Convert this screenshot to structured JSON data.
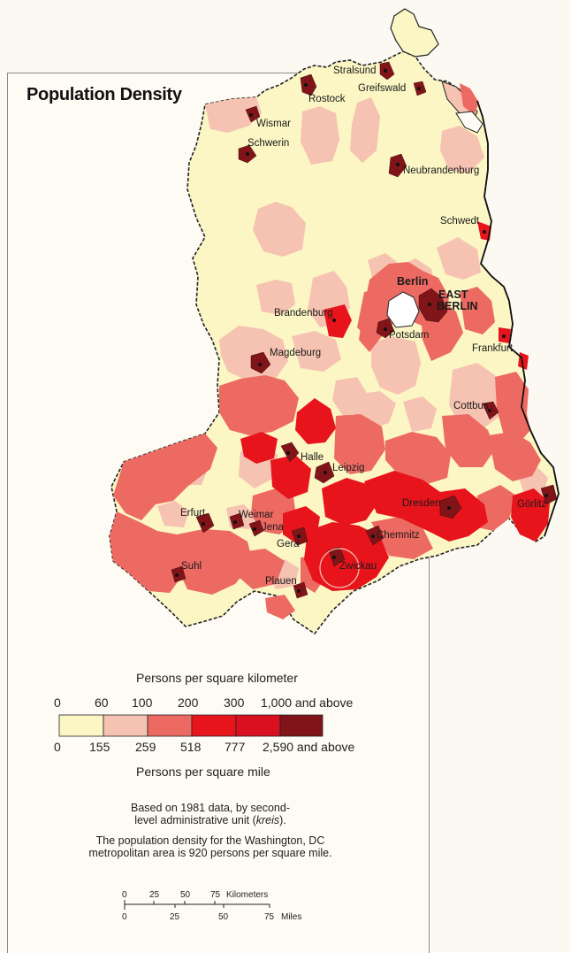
{
  "title": "Population Density",
  "cities": {
    "stralsund": "Stralsund",
    "greifswald": "Greifswald",
    "rostock": "Rostock",
    "wismar": "Wismar",
    "schwerin": "Schwerin",
    "neubrandenburg": "Neubrandenburg",
    "schwedt": "Schwedt",
    "berlin": "Berlin",
    "east_berlin_1": "EAST",
    "east_berlin_2": "BERLIN",
    "brandenburg": "Brandenburg",
    "potsdam": "Potsdam",
    "frankfurt": "Frankfurt",
    "magdeburg": "Magdeburg",
    "cottbus": "Cottbus",
    "halle": "Halle",
    "leipzig": "Leipzig",
    "dresden": "Dresden",
    "gorlitz": "Görlitz",
    "erfurt": "Erfurt",
    "weimar": "Weimar",
    "jena": "Jena",
    "gera": "Gera",
    "chemnitz": "Chemnitz",
    "zwickau": "Zwickau",
    "suhl": "Suhl",
    "plauen": "Plauen"
  },
  "legend": {
    "km_title": "Persons per square kilometer",
    "mile_title": "Persons per square mile",
    "km_ticks": [
      "0",
      "60",
      "100",
      "200",
      "300",
      "1,000 and above"
    ],
    "mile_ticks": [
      "0",
      "155",
      "259",
      "518",
      "777",
      "2,590 and above"
    ],
    "classes": [
      {
        "color": "#fbf6c4"
      },
      {
        "color": "#f6c2b2"
      },
      {
        "color": "#ec6a62"
      },
      {
        "color": "#e8141c"
      },
      {
        "color": "#d8101f"
      },
      {
        "color": "#801418"
      }
    ]
  },
  "notes": {
    "line1": "Based on 1981 data, by second-",
    "line2_a": "level administrative unit (",
    "line2_italic": "kreis",
    "line2_b": ").",
    "line3": "The population density for the Washington, DC",
    "line4": "metropolitan area is 920 persons per square mile."
  },
  "scale": {
    "km_ticks": [
      "0",
      "25",
      "50",
      "75"
    ],
    "km_unit": "Kilometers",
    "mile_ticks": [
      "0",
      "25",
      "50",
      "75"
    ],
    "mile_unit": "Miles"
  }
}
